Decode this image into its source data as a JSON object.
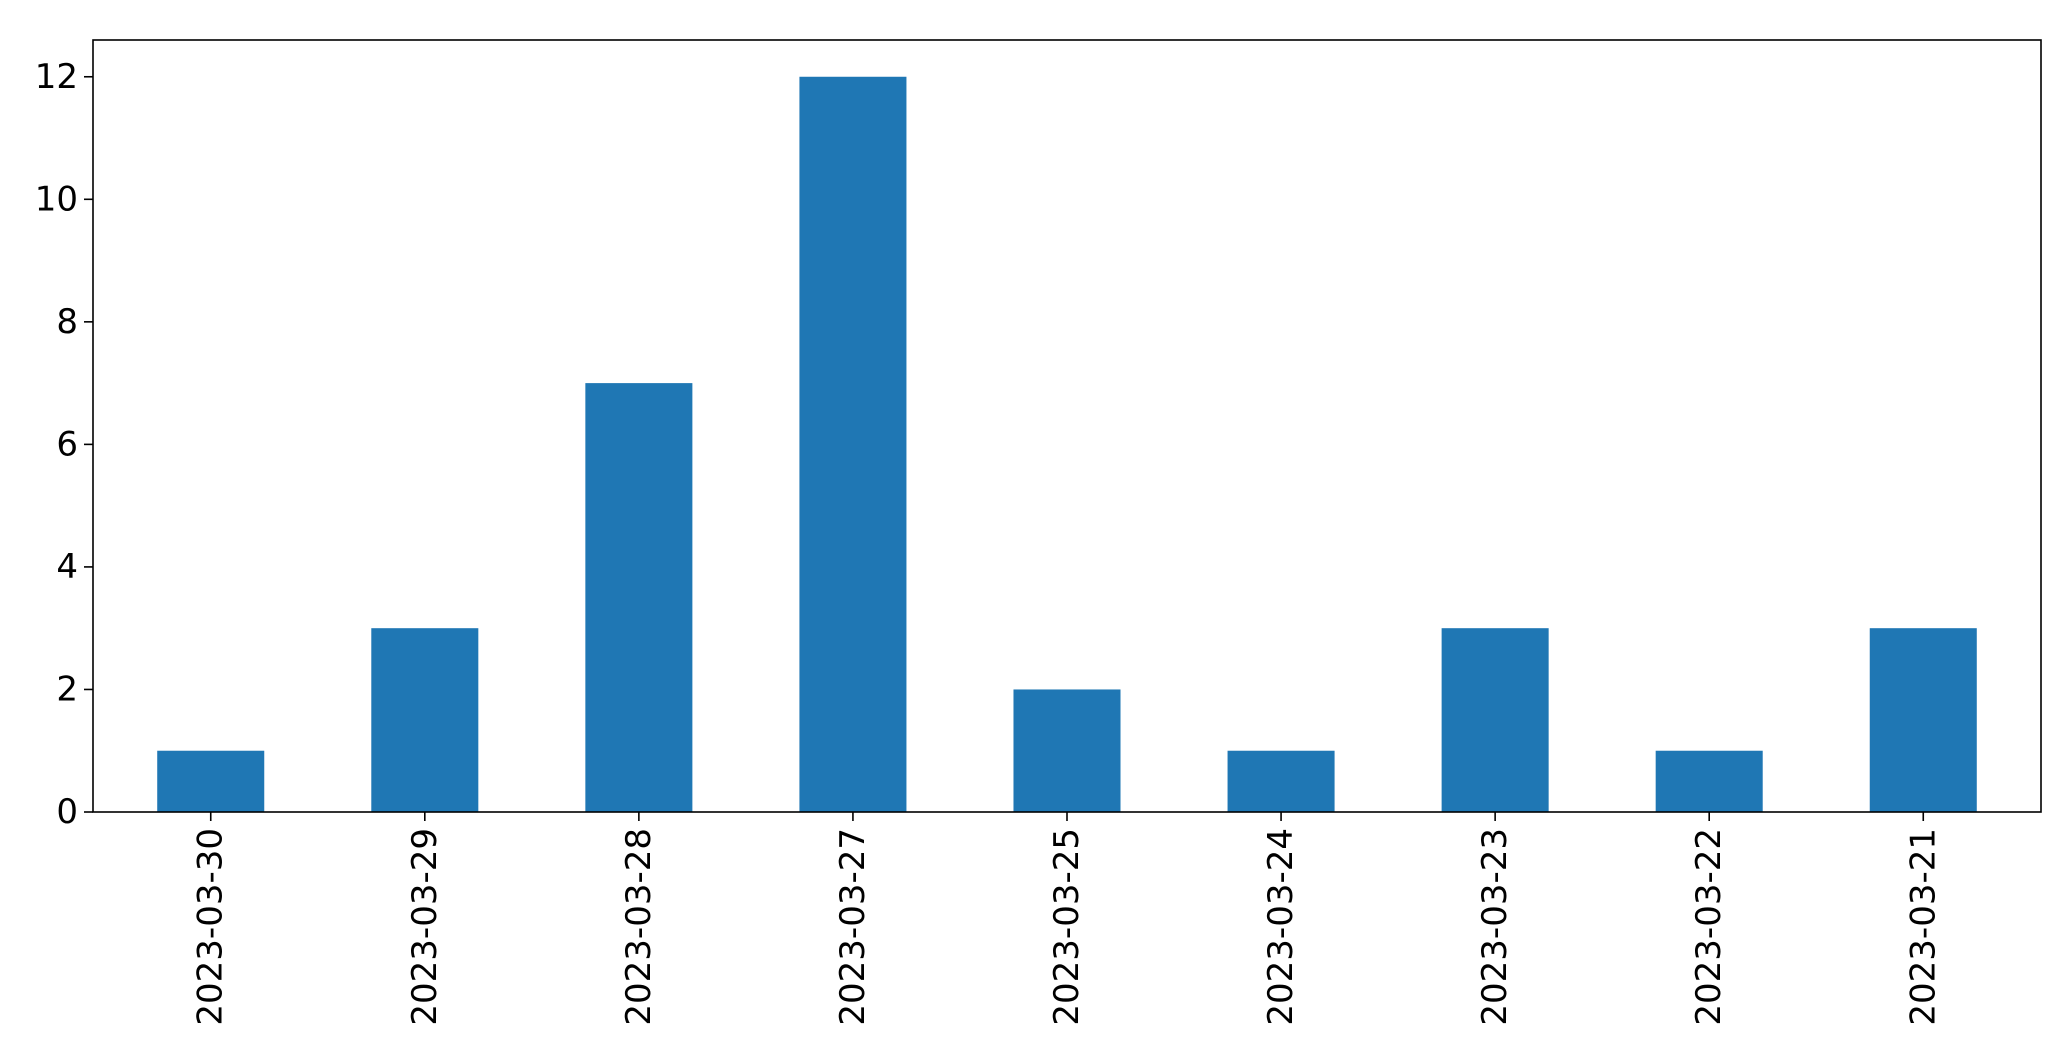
{
  "chart_data": {
    "type": "bar",
    "categories": [
      "2023-03-30",
      "2023-03-29",
      "2023-03-28",
      "2023-03-27",
      "2023-03-25",
      "2023-03-24",
      "2023-03-23",
      "2023-03-22",
      "2023-03-21"
    ],
    "values": [
      1,
      3,
      7,
      12,
      2,
      1,
      3,
      1,
      3
    ],
    "yticks": [
      0,
      2,
      4,
      6,
      8,
      10,
      12
    ],
    "ylim": [
      0,
      12.6
    ],
    "bar_color": "#1f77b4",
    "grid": false,
    "legend": "none"
  }
}
